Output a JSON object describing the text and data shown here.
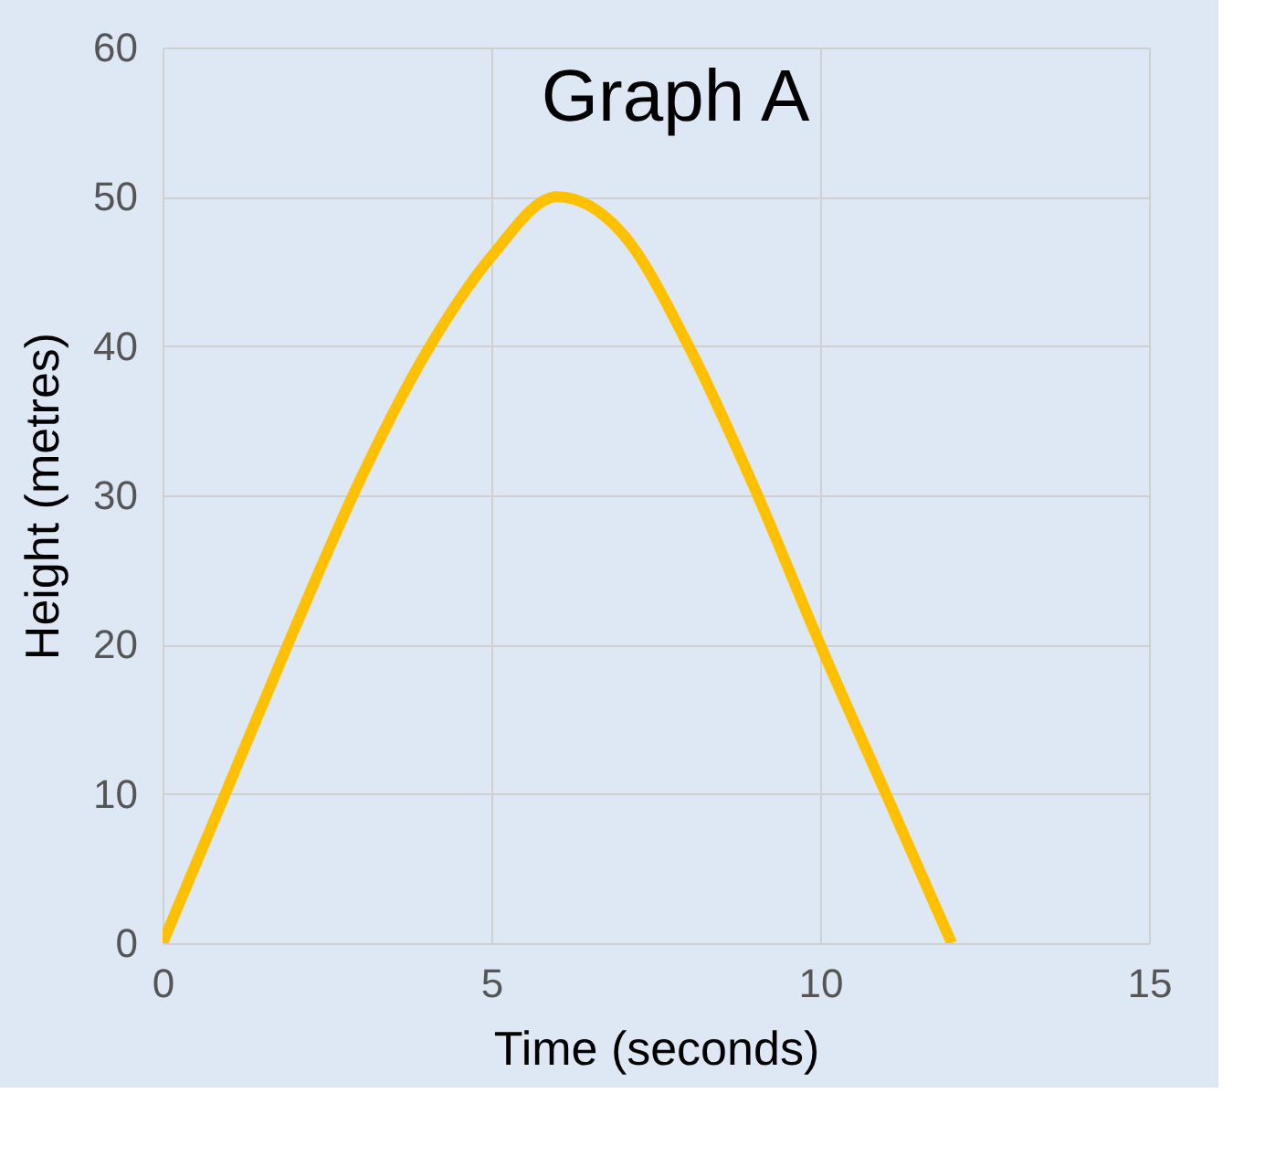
{
  "chart_data": {
    "type": "line",
    "title": "Graph A",
    "xlabel": "Time (seconds)",
    "ylabel": "Height (metres)",
    "x": [
      0,
      1,
      2,
      3,
      4,
      5,
      6,
      7,
      8,
      9,
      10,
      11,
      12
    ],
    "series": [
      {
        "color": "#ffc000",
        "values": [
          0,
          10.5,
          21,
          31,
          39.5,
          46,
          50,
          47.5,
          40,
          30.5,
          20,
          10,
          0
        ]
      }
    ],
    "xlim": [
      0,
      15
    ],
    "xticks": [
      0,
      5,
      10,
      15
    ],
    "ylim": [
      0,
      60
    ],
    "yticks": [
      0,
      10,
      20,
      30,
      40,
      50,
      60
    ],
    "grid": true,
    "marker": "none",
    "line_style": "solid"
  }
}
